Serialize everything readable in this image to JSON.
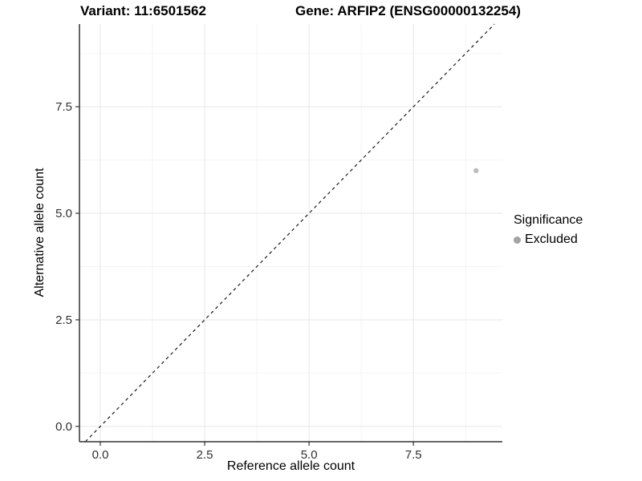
{
  "titles": {
    "variant": "Variant: 11:6501562",
    "gene": "Gene: ARFIP2 (ENSG00000132254)"
  },
  "chart_data": {
    "type": "scatter",
    "title": "Variant: 11:6501562 / Gene: ARFIP2 (ENSG00000132254)",
    "xlabel": "Reference allele count",
    "ylabel": "Alternative allele count",
    "xlim": [
      -0.5,
      9.63
    ],
    "ylim": [
      -0.36,
      9.44
    ],
    "x_ticks": [
      0,
      2.5,
      5,
      7.5
    ],
    "x_tick_labels": [
      "0.0",
      "2.5",
      "5.0",
      "7.5"
    ],
    "y_ticks": [
      0,
      2.5,
      5,
      7.5
    ],
    "y_tick_labels": [
      "0.0",
      "2.5",
      "5.0",
      "7.5"
    ],
    "x_minor": [
      1.25,
      3.75,
      6.25,
      8.75
    ],
    "y_minor": [
      1.25,
      3.75,
      6.25,
      8.75
    ],
    "grid": true,
    "reference_line": {
      "type": "identity",
      "slope": 1,
      "intercept": 0,
      "style": "dashed"
    },
    "series": [
      {
        "name": "Excluded",
        "color": "#bdbdbd",
        "points": [
          {
            "x": 9,
            "y": 6
          }
        ]
      }
    ],
    "legend": {
      "position": "right",
      "title": "Significance",
      "items": [
        {
          "label": "Excluded",
          "color": "#a3a3a3"
        }
      ]
    }
  },
  "colors": {
    "background": "#ffffff",
    "grid_major": "#e7e7e7",
    "grid_minor": "#f4f4f4",
    "axis_line": "#333333",
    "tick_label": "#303030",
    "identity_line": "#1a1a1a",
    "point": "#bdbdbd",
    "legend_point": "#a3a3a3",
    "text": "#000000"
  }
}
